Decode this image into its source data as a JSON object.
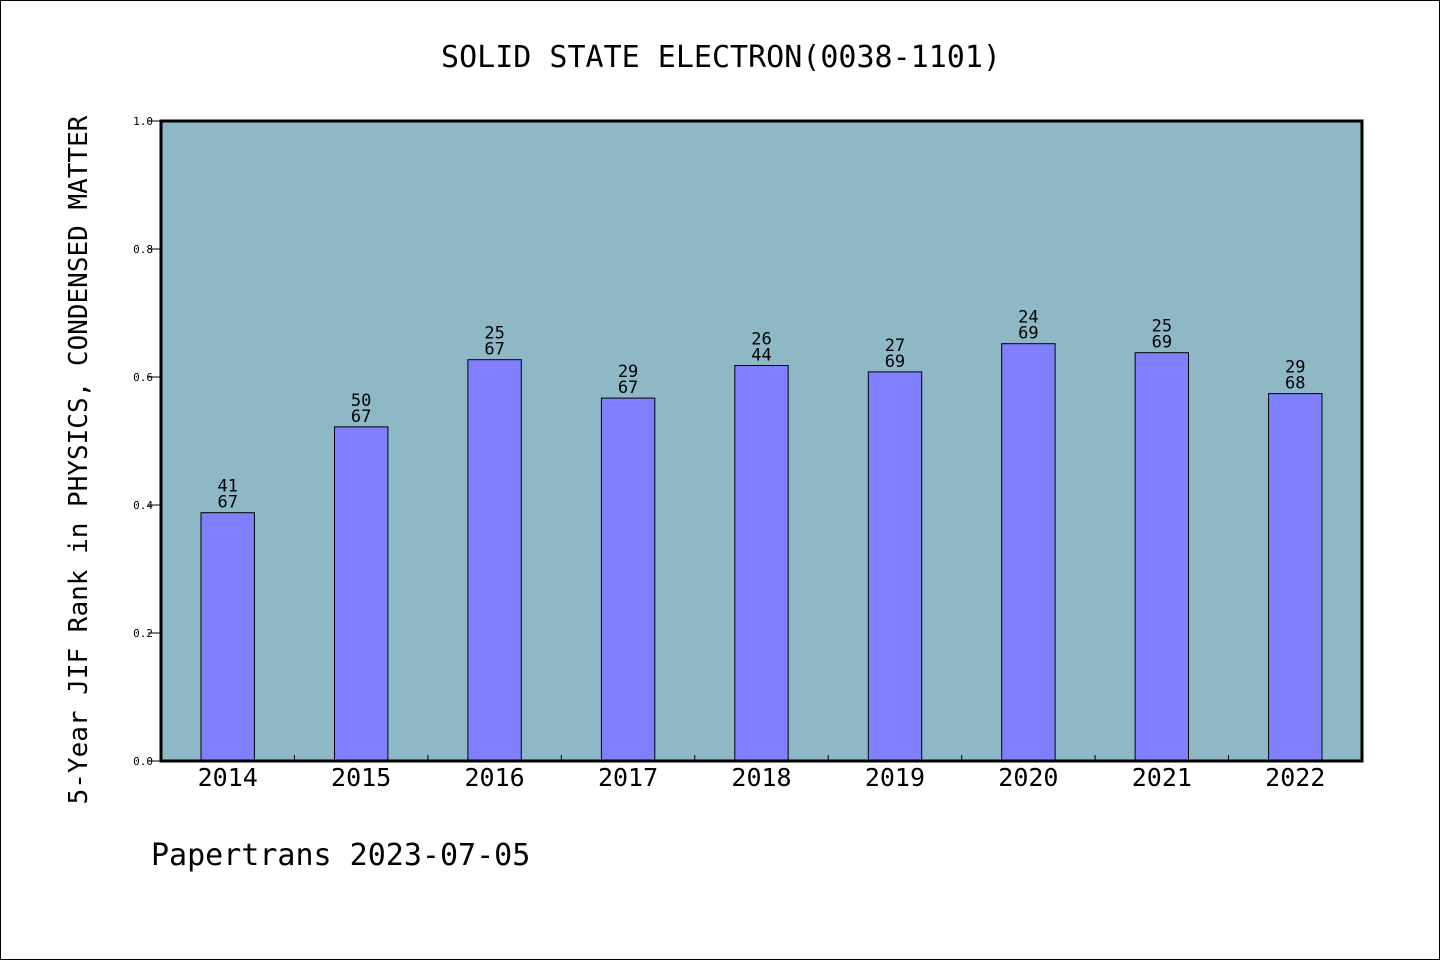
{
  "chart_data": {
    "type": "bar",
    "title": "SOLID STATE ELECTRON(0038-1101)",
    "xlabel": "",
    "ylabel": "5-Year JIF Rank in PHYSICS, CONDENSED MATTER",
    "categories": [
      "2014",
      "2015",
      "2016",
      "2017",
      "2018",
      "2019",
      "2020",
      "2021",
      "2022"
    ],
    "values": [
      0.388,
      0.522,
      0.627,
      0.567,
      0.618,
      0.608,
      0.652,
      0.638,
      0.574
    ],
    "ranks": [
      "41",
      "50",
      "25",
      "29",
      "26",
      "27",
      "24",
      "25",
      "29"
    ],
    "totals": [
      "67",
      "67",
      "67",
      "67",
      "44",
      "69",
      "69",
      "69",
      "68"
    ],
    "ylim": [
      0,
      1.0
    ],
    "yticks": [
      "0.0",
      "0.2",
      "0.4",
      "0.6",
      "0.8",
      "1.0"
    ],
    "grid": false,
    "legend": "none",
    "colors": {
      "plot_background": "#8fb8c6",
      "bar_fill": "#8080ff",
      "bar_stroke": "#000000",
      "axis": "#000000"
    }
  },
  "footer": {
    "text": "Papertrans 2023-07-05"
  }
}
